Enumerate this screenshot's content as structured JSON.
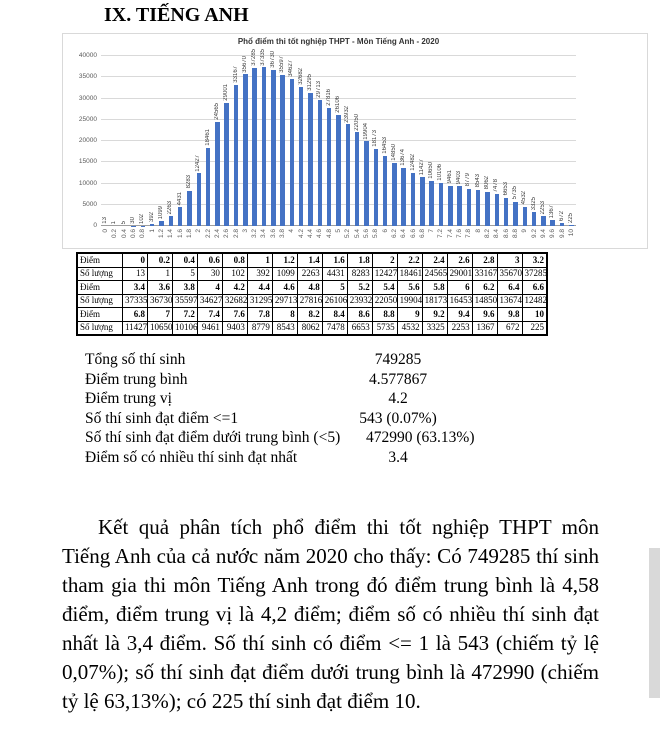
{
  "page": {
    "heading": "IX. TIẾNG ANH"
  },
  "chart_data": {
    "type": "bar",
    "title": "Phổ điểm thi tốt nghiệp THPT - Môn Tiếng Anh - 2020",
    "xlabel": "",
    "ylabel": "",
    "ylim": [
      0,
      40000
    ],
    "ytick_step": 5000,
    "grid": true,
    "legend": false,
    "bar_color": "#4472C4",
    "categories": [
      "0",
      "0.2",
      "0.4",
      "0.6",
      "0.8",
      "1",
      "1.2",
      "1.4",
      "1.6",
      "1.8",
      "2",
      "2.2",
      "2.4",
      "2.6",
      "2.8",
      "3",
      "3.2",
      "3.4",
      "3.6",
      "3.8",
      "4",
      "4.2",
      "4.4",
      "4.6",
      "4.8",
      "5",
      "5.2",
      "5.4",
      "5.6",
      "5.8",
      "6",
      "6.2",
      "6.4",
      "6.6",
      "6.8",
      "7",
      "7.2",
      "7.4",
      "7.6",
      "7.8",
      "8",
      "8.2",
      "8.4",
      "8.6",
      "8.8",
      "9",
      "9.2",
      "9.4",
      "9.6",
      "9.8",
      "10"
    ],
    "values": [
      13,
      1,
      5,
      30,
      102,
      392,
      1099,
      2263,
      4431,
      8283,
      12427,
      18461,
      24565,
      29001,
      33167,
      35670,
      37285,
      37335,
      36730,
      35597,
      34627,
      32682,
      31295,
      29713,
      27816,
      26106,
      23932,
      22050,
      19904,
      18173,
      16453,
      14850,
      13674,
      12482,
      11427,
      10650,
      10106,
      9461,
      9403,
      8779,
      8543,
      8062,
      7478,
      6653,
      5735,
      4532,
      3325,
      2253,
      1367,
      672,
      225
    ]
  },
  "table": {
    "rows": [
      {
        "label": "Điểm",
        "bold": true,
        "cells": [
          "0",
          "0.2",
          "0.4",
          "0.6",
          "0.8",
          "1",
          "1.2",
          "1.4",
          "1.6",
          "1.8",
          "2",
          "2.2",
          "2.4",
          "2.6",
          "2.8",
          "3",
          "3.2"
        ]
      },
      {
        "label": "Số lượng",
        "bold": false,
        "cells": [
          "13",
          "1",
          "5",
          "30",
          "102",
          "392",
          "1099",
          "2263",
          "4431",
          "8283",
          "12427",
          "18461",
          "24565",
          "29001",
          "33167",
          "35670",
          "37285"
        ]
      },
      {
        "label": "Điểm",
        "bold": true,
        "cells": [
          "3.4",
          "3.6",
          "3.8",
          "4",
          "4.2",
          "4.4",
          "4.6",
          "4.8",
          "5",
          "5.2",
          "5.4",
          "5.6",
          "5.8",
          "6",
          "6.2",
          "6.4",
          "6.6"
        ]
      },
      {
        "label": "Số lượng",
        "bold": false,
        "cells": [
          "37335",
          "36730",
          "35597",
          "34627",
          "32682",
          "31295",
          "29713",
          "27816",
          "26106",
          "23932",
          "22050",
          "19904",
          "18173",
          "16453",
          "14850",
          "13674",
          "12482"
        ]
      },
      {
        "label": "Điểm",
        "bold": true,
        "cells": [
          "6.8",
          "7",
          "7.2",
          "7.4",
          "7.6",
          "7.8",
          "8",
          "8.2",
          "8.4",
          "8.6",
          "8.8",
          "9",
          "9.2",
          "9.4",
          "9.6",
          "9.8",
          "10"
        ]
      },
      {
        "label": "Số lượng",
        "bold": false,
        "cells": [
          "11427",
          "10650",
          "10106",
          "9461",
          "9403",
          "8779",
          "8543",
          "8062",
          "7478",
          "6653",
          "5735",
          "4532",
          "3325",
          "2253",
          "1367",
          "672",
          "225"
        ]
      }
    ]
  },
  "stats": {
    "items": [
      {
        "label": "Tổng số thí sinh",
        "value": "749285"
      },
      {
        "label": "Điểm trung bình",
        "value": "4.577867"
      },
      {
        "label": "Điểm trung vị",
        "value": "4.2"
      },
      {
        "label": "Số thí sinh đạt điểm <=1",
        "value": "543 (0.07%)"
      },
      {
        "label": "Số thí sinh đạt điểm dưới trung bình (<5)",
        "value": "472990 (63.13%)"
      },
      {
        "label": "Điểm số có nhiều thí sinh đạt nhất",
        "value": "3.4"
      }
    ]
  },
  "paragraph": "Kết quả phân tích phổ điểm thi tốt nghiệp THPT môn Tiếng Anh của cả nước năm 2020 cho thấy: Có 749285 thí sinh tham gia thi môn Tiếng Anh trong đó điểm trung bình là 4,58 điểm, điểm trung vị là 4,2 điểm; điểm số có nhiều thí sinh đạt nhất là 3,4 điểm. Số thí sinh có điểm <= 1 là 543 (chiếm tỷ lệ 0,07%); số thí sinh đạt điểm dưới trung bình là 472990 (chiếm tỷ lệ 63,13%); có 225 thí sinh đạt điểm 10."
}
